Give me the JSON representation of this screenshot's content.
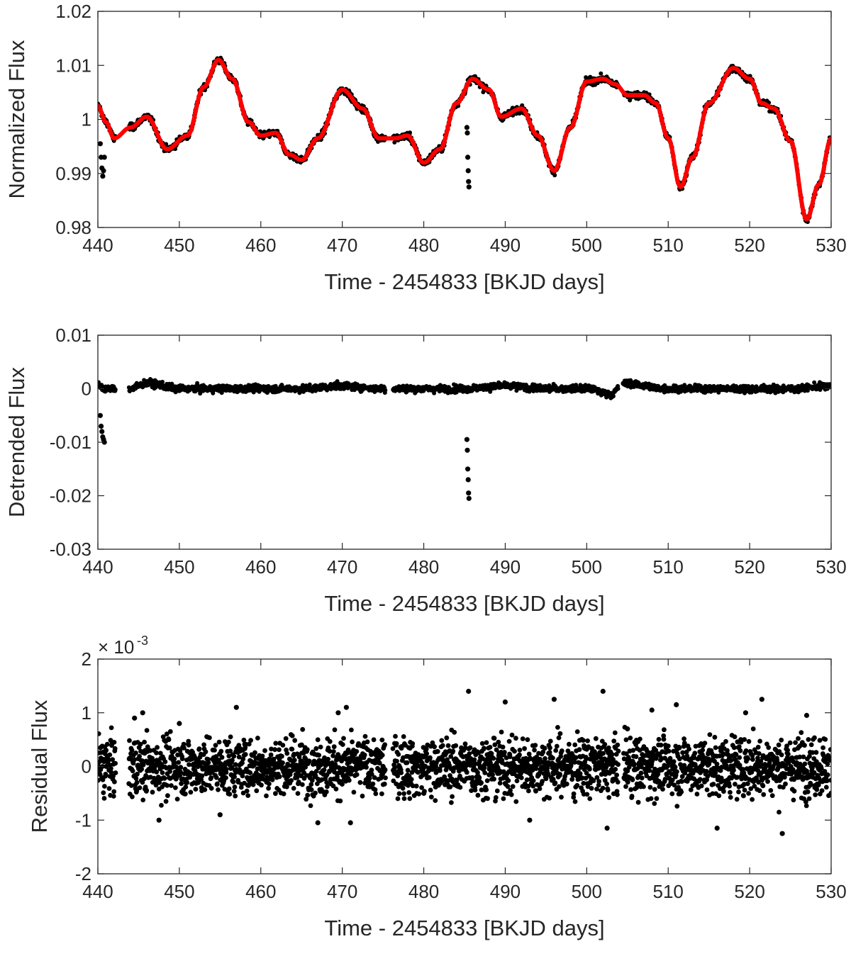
{
  "colors": {
    "points": "#000000",
    "fit_curve": "#ff0000",
    "axes": "#262626",
    "background": "#ffffff"
  },
  "chart_data": [
    {
      "type": "scatter",
      "title": "",
      "xlabel": "Time - 2454833 [BKJD days]",
      "ylabel": "Normalized Flux",
      "xlim": [
        440,
        530
      ],
      "ylim": [
        0.98,
        1.02
      ],
      "xticks": [
        "440",
        "450",
        "460",
        "470",
        "480",
        "490",
        "500",
        "510",
        "520",
        "530"
      ],
      "yticks": [
        "0.98",
        "0.99",
        "1",
        "1.01",
        "1.02"
      ],
      "grid": false,
      "series": [
        {
          "style": "points",
          "description": "light curve",
          "x": [
            440.0,
            441.0,
            442.0,
            444.0,
            446.0,
            448.5,
            451.0,
            453.0,
            454.8,
            456.5,
            458.5,
            460.0,
            461.8,
            463.5,
            465.0,
            467.0,
            470.0,
            472.5,
            474.5,
            476.5,
            478.0,
            480.0,
            482.0,
            484.0,
            486.0,
            488.0,
            489.5,
            492.0,
            494.0,
            496.0,
            498.0,
            500.0,
            502.0,
            503.5,
            505.0,
            507.0,
            508.5,
            510.0,
            511.5,
            513.0,
            515.0,
            518.0,
            520.0,
            521.5,
            523.0,
            525.0,
            527.0,
            528.5,
            530.0
          ],
          "y": [
            1.0025,
            0.9995,
            0.9965,
            0.9985,
            1.0005,
            0.9945,
            0.997,
            1.006,
            1.011,
            1.0075,
            0.9995,
            0.997,
            0.9975,
            0.9935,
            0.9925,
            0.9965,
            1.0055,
            1.002,
            0.9965,
            0.9965,
            0.997,
            0.992,
            0.9945,
            1.003,
            1.0075,
            1.0055,
            1.0005,
            1.002,
            0.997,
            0.9905,
            0.9985,
            1.007,
            1.0075,
            1.0065,
            1.0045,
            1.0045,
            1.003,
            0.9965,
            0.9875,
            0.993,
            1.003,
            1.0095,
            1.0075,
            1.003,
            1.002,
            0.996,
            0.9815,
            0.988,
            0.9965
          ]
        },
        {
          "style": "points",
          "description": "transit points",
          "x": [
            440.3,
            440.4,
            440.5,
            440.6,
            440.7,
            440.8,
            485.3,
            485.35,
            485.4,
            485.45,
            485.5,
            485.55
          ],
          "y": [
            0.9955,
            0.993,
            0.991,
            0.9895,
            0.9905,
            0.993,
            0.9985,
            0.9975,
            0.993,
            0.9905,
            0.9885,
            0.9875
          ]
        },
        {
          "style": "line",
          "description": "fit curve",
          "x": [
            440.0,
            441.0,
            442.0,
            444.0,
            446.0,
            448.5,
            451.0,
            453.0,
            454.8,
            456.5,
            458.5,
            460.0,
            461.8,
            463.5,
            465.0,
            467.0,
            470.0,
            472.5,
            474.5,
            476.5,
            478.0,
            480.0,
            482.0,
            484.0,
            486.0,
            488.0,
            489.5,
            492.0,
            494.0,
            496.0,
            498.0,
            500.0,
            502.0,
            503.5,
            505.0,
            507.0,
            508.5,
            510.0,
            511.5,
            513.0,
            515.0,
            518.0,
            520.0,
            521.5,
            523.0,
            525.0,
            527.0,
            528.5,
            530.0
          ],
          "y": [
            1.0025,
            0.9995,
            0.9965,
            0.9985,
            1.0005,
            0.9945,
            0.997,
            1.006,
            1.011,
            1.0075,
            0.9995,
            0.997,
            0.9975,
            0.9935,
            0.9925,
            0.9965,
            1.0055,
            1.002,
            0.9965,
            0.9965,
            0.997,
            0.992,
            0.9945,
            1.003,
            1.0075,
            1.0055,
            1.0005,
            1.002,
            0.997,
            0.9905,
            0.9985,
            1.007,
            1.0075,
            1.0065,
            1.0045,
            1.0045,
            1.003,
            0.9965,
            0.9875,
            0.993,
            1.003,
            1.0095,
            1.0075,
            1.003,
            1.002,
            0.996,
            0.9815,
            0.988,
            0.9965
          ]
        }
      ]
    },
    {
      "type": "scatter",
      "title": "",
      "xlabel": "Time - 2454833 [BKJD days]",
      "ylabel": "Detrended Flux",
      "xlim": [
        440,
        530
      ],
      "ylim": [
        -0.03,
        0.01
      ],
      "xticks": [
        "440",
        "450",
        "460",
        "470",
        "480",
        "490",
        "500",
        "510",
        "520",
        "530"
      ],
      "yticks": [
        "-0.03",
        "-0.02",
        "-0.01",
        "0",
        "0.01"
      ],
      "grid": false,
      "series": [
        {
          "style": "points",
          "description": "detrended light curve",
          "x": [
            440.0,
            441.0,
            442.0,
            444.0,
            446.0,
            450.0,
            455.0,
            460.0,
            465.0,
            470.0,
            475.0,
            476.5,
            480.0,
            485.0,
            490.0,
            495.0,
            500.0,
            503.0,
            504.5,
            510.0,
            515.0,
            520.0,
            525.0,
            530.0
          ],
          "y": [
            0.0005,
            0.0,
            0.0,
            0.0,
            0.001,
            0.0,
            0.0,
            0.0,
            0.0,
            0.0005,
            0.0,
            0.0,
            0.0,
            0.0,
            0.0005,
            0.0,
            0.0,
            -0.001,
            0.001,
            0.0,
            0.0,
            0.0,
            0.0,
            0.0005
          ]
        },
        {
          "style": "points",
          "description": "transit points",
          "x": [
            440.3,
            440.4,
            440.5,
            440.6,
            440.7,
            440.8,
            485.3,
            485.35,
            485.4,
            485.45,
            485.5,
            485.55
          ],
          "y": [
            -0.005,
            -0.007,
            -0.008,
            -0.009,
            -0.0095,
            -0.01,
            -0.0095,
            -0.0115,
            -0.015,
            -0.017,
            -0.0195,
            -0.0205
          ]
        }
      ]
    },
    {
      "type": "scatter",
      "title": "",
      "xlabel": "Time - 2454833 [BKJD days]",
      "ylabel": "Residual Flux",
      "y_multiplier": "× 10",
      "y_multiplier_exponent": "-3",
      "xlim": [
        440,
        530
      ],
      "ylim": [
        -2,
        2
      ],
      "xticks": [
        "440",
        "450",
        "460",
        "470",
        "480",
        "490",
        "500",
        "510",
        "520",
        "530"
      ],
      "yticks": [
        "-2",
        "-1",
        "0",
        "1",
        "2"
      ],
      "grid": false,
      "series": [
        {
          "style": "points",
          "description": "residuals",
          "x": [
            441.0,
            444.5,
            445.5,
            447.5,
            450.0,
            455.0,
            457.0,
            460.0,
            465.0,
            467.0,
            469.5,
            470.5,
            471.0,
            475.0,
            480.0,
            485.5,
            490.0,
            493.0,
            496.0,
            500.0,
            502.0,
            502.5,
            505.0,
            508.0,
            511.0,
            516.0,
            519.5,
            521.5,
            524.0,
            527.0,
            530.0
          ],
          "y": [
            0.3,
            0.9,
            1.0,
            -1.0,
            0.8,
            -0.9,
            1.1,
            0.0,
            0.4,
            -1.05,
            1.0,
            1.1,
            -1.05,
            0.0,
            -0.5,
            1.4,
            1.2,
            -1.0,
            1.25,
            0.0,
            1.4,
            -1.15,
            0.7,
            1.05,
            1.15,
            -1.15,
            1.0,
            1.25,
            -1.25,
            0.95,
            -0.5
          ]
        }
      ]
    }
  ]
}
